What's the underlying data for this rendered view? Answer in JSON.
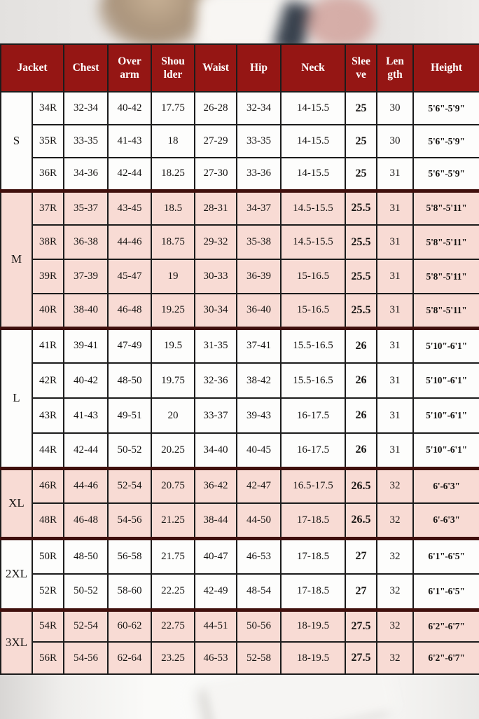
{
  "colors": {
    "header_bg": "#951614",
    "header_text": "#ffffff",
    "row_pink": "#f8dbd4",
    "row_white": "#fdfdfc",
    "grid_border": "#1c1c1c",
    "group_divider": "#40100d",
    "body_text": "#161412"
  },
  "size_chart": {
    "headers": [
      "Jacket",
      "Chest",
      "Over\narm",
      "Shou\nlder",
      "Waist",
      "Hip",
      "Neck",
      "Slee\nve",
      "Len\ngth",
      "Height"
    ],
    "groups": [
      {
        "size_label": "S",
        "rows": [
          [
            "34R",
            "32-34",
            "40-42",
            "17.75",
            "26-28",
            "32-34",
            "14-15.5",
            "25",
            "30",
            "5'6\"-5'9\""
          ],
          [
            "35R",
            "33-35",
            "41-43",
            "18",
            "27-29",
            "33-35",
            "14-15.5",
            "25",
            "30",
            "5'6\"-5'9\""
          ],
          [
            "36R",
            "34-36",
            "42-44",
            "18.25",
            "27-30",
            "33-36",
            "14-15.5",
            "25",
            "31",
            "5'6\"-5'9\""
          ]
        ]
      },
      {
        "size_label": "M",
        "rows": [
          [
            "37R",
            "35-37",
            "43-45",
            "18.5",
            "28-31",
            "34-37",
            "14.5-15.5",
            "25.5",
            "31",
            "5'8\"-5'11\""
          ],
          [
            "38R",
            "36-38",
            "44-46",
            "18.75",
            "29-32",
            "35-38",
            "14.5-15.5",
            "25.5",
            "31",
            "5'8\"-5'11\""
          ],
          [
            "39R",
            "37-39",
            "45-47",
            "19",
            "30-33",
            "36-39",
            "15-16.5",
            "25.5",
            "31",
            "5'8\"-5'11\""
          ],
          [
            "40R",
            "38-40",
            "46-48",
            "19.25",
            "30-34",
            "36-40",
            "15-16.5",
            "25.5",
            "31",
            "5'8\"-5'11\""
          ]
        ]
      },
      {
        "size_label": "L",
        "rows": [
          [
            "41R",
            "39-41",
            "47-49",
            "19.5",
            "31-35",
            "37-41",
            "15.5-16.5",
            "26",
            "31",
            "5'10\"-6'1\""
          ],
          [
            "42R",
            "40-42",
            "48-50",
            "19.75",
            "32-36",
            "38-42",
            "15.5-16.5",
            "26",
            "31",
            "5'10\"-6'1\""
          ],
          [
            "43R",
            "41-43",
            "49-51",
            "20",
            "33-37",
            "39-43",
            "16-17.5",
            "26",
            "31",
            "5'10\"-6'1\""
          ],
          [
            "44R",
            "42-44",
            "50-52",
            "20.25",
            "34-40",
            "40-45",
            "16-17.5",
            "26",
            "31",
            "5'10\"-6'1\""
          ]
        ]
      },
      {
        "size_label": "XL",
        "rows": [
          [
            "46R",
            "44-46",
            "52-54",
            "20.75",
            "36-42",
            "42-47",
            "16.5-17.5",
            "26.5",
            "32",
            "6'-6'3\""
          ],
          [
            "48R",
            "46-48",
            "54-56",
            "21.25",
            "38-44",
            "44-50",
            "17-18.5",
            "26.5",
            "32",
            "6'-6'3\""
          ]
        ]
      },
      {
        "size_label": "2XL",
        "rows": [
          [
            "50R",
            "48-50",
            "56-58",
            "21.75",
            "40-47",
            "46-53",
            "17-18.5",
            "27",
            "32",
            "6'1\"-6'5\""
          ],
          [
            "52R",
            "50-52",
            "58-60",
            "22.25",
            "42-49",
            "48-54",
            "17-18.5",
            "27",
            "32",
            "6'1\"-6'5\""
          ]
        ]
      },
      {
        "size_label": "3XL",
        "rows": [
          [
            "54R",
            "52-54",
            "60-62",
            "22.75",
            "44-51",
            "50-56",
            "18-19.5",
            "27.5",
            "32",
            "6'2\"-6'7\""
          ],
          [
            "56R",
            "54-56",
            "62-64",
            "23.25",
            "46-53",
            "52-58",
            "18-19.5",
            "27.5",
            "32",
            "6'2\"-6'7\""
          ]
        ]
      }
    ]
  }
}
